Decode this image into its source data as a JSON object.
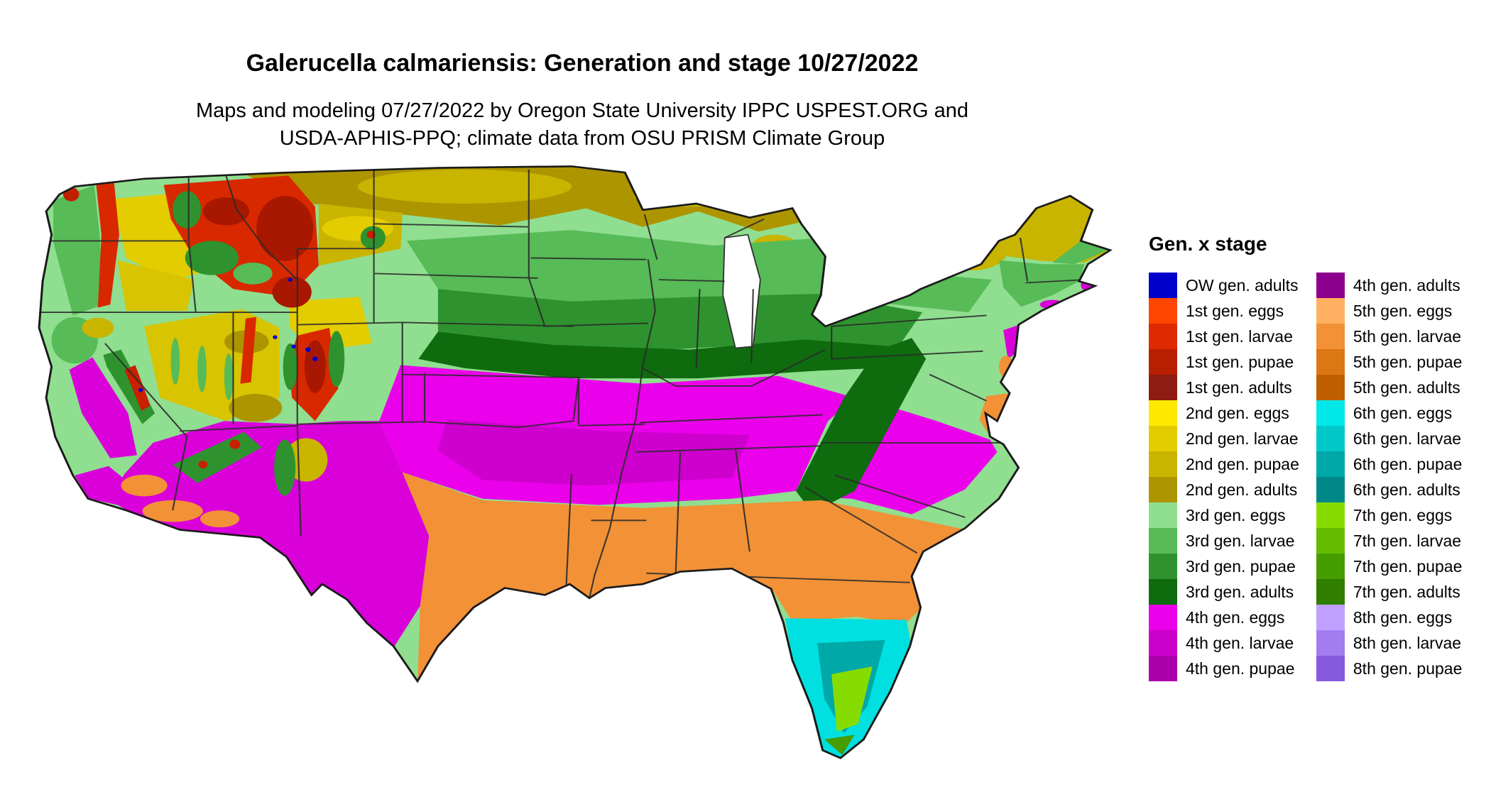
{
  "page": {
    "background": "#ffffff"
  },
  "header": {
    "title": "Galerucella calmariensis: Generation and stage 10/27/2022",
    "subtitle_line1": "Maps and modeling 07/27/2022 by Oregon State University IPPC USPEST.ORG and",
    "subtitle_line2": "USDA-APHIS-PPQ; climate data from OSU PRISM Climate Group"
  },
  "map": {
    "region": "contiguous United States",
    "kind": "generation and stage raster map"
  },
  "legend": {
    "title": "Gen. x stage",
    "columns": [
      {
        "items": [
          {
            "label": "OW gen. adults",
            "color": "#0000CD"
          },
          {
            "label": "1st gen. eggs",
            "color": "#FF4500"
          },
          {
            "label": "1st gen. larvae",
            "color": "#DE2A00"
          },
          {
            "label": "1st gen. pupae",
            "color": "#B81E00"
          },
          {
            "label": "1st gen. adults",
            "color": "#8E1C12"
          },
          {
            "label": "2nd gen. eggs",
            "color": "#FFE800"
          },
          {
            "label": "2nd gen. larvae",
            "color": "#E3CC00"
          },
          {
            "label": "2nd gen. pupae",
            "color": "#C9B400"
          },
          {
            "label": "2nd gen. adults",
            "color": "#AD9500"
          },
          {
            "label": "3rd gen. eggs",
            "color": "#90DE90"
          },
          {
            "label": "3rd gen. larvae",
            "color": "#57BB57"
          },
          {
            "label": "3rd gen. pupae",
            "color": "#2E932E"
          },
          {
            "label": "3rd gen. adults",
            "color": "#0E6B0E"
          },
          {
            "label": "4th gen. eggs",
            "color": "#EA00EA"
          },
          {
            "label": "4th gen. larvae",
            "color": "#CB00CB"
          },
          {
            "label": "4th gen. pupae",
            "color": "#AC00AC"
          }
        ]
      },
      {
        "items": [
          {
            "label": "4th gen. adults",
            "color": "#8D008D"
          },
          {
            "label": "5th gen. eggs",
            "color": "#FFB060"
          },
          {
            "label": "5th gen. larvae",
            "color": "#F29136"
          },
          {
            "label": "5th gen. pupae",
            "color": "#DD7714"
          },
          {
            "label": "5th gen. adults",
            "color": "#BF5F00"
          },
          {
            "label": "6th gen. eggs",
            "color": "#00E8E8"
          },
          {
            "label": "6th gen. larvae",
            "color": "#00C8C8"
          },
          {
            "label": "6th gen. pupae",
            "color": "#00A8A8"
          },
          {
            "label": "6th gen. adults",
            "color": "#008888"
          },
          {
            "label": "7th gen. eggs",
            "color": "#86DC00"
          },
          {
            "label": "7th gen. larvae",
            "color": "#63BC00"
          },
          {
            "label": "7th gen. pupae",
            "color": "#459D00"
          },
          {
            "label": "7th gen. adults",
            "color": "#2F7E00"
          },
          {
            "label": "8th gen. eggs",
            "color": "#C0A0FF"
          },
          {
            "label": "8th gen. larvae",
            "color": "#A37CF0"
          },
          {
            "label": "8th gen. pupae",
            "color": "#8759DE"
          }
        ]
      }
    ]
  }
}
